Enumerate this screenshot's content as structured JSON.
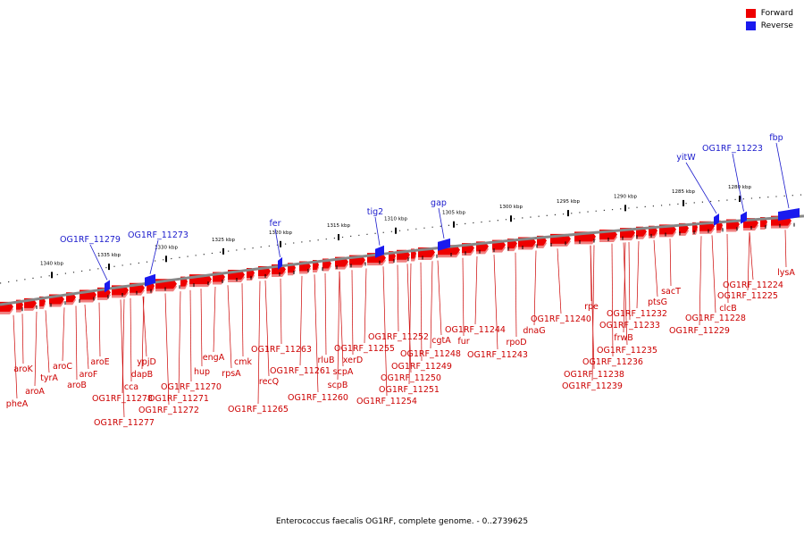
{
  "caption": "Enterococcus faecalis OG1RF, complete genome. - 0..2739625",
  "legend": [
    {
      "label": "Forward",
      "color": "#ee0000"
    },
    {
      "label": "Reverse",
      "color": "#1a1aee"
    }
  ],
  "colors": {
    "forward": "#ee0000",
    "forward_label": "#cc0000",
    "reverse": "#1a1aee",
    "reverse_label": "#1a1acc",
    "backbone": "#888888"
  },
  "scale_ticks": [
    "1340 kbp",
    "1335 kbp",
    "1330 kbp",
    "1325 kbp",
    "1320 kbp",
    "1315 kbp",
    "1310 kbp",
    "1305 kbp",
    "1300 kbp",
    "1295 kbp",
    "1290 kbp",
    "1285 kbp",
    "1280 kbp"
  ],
  "reverse_genes": [
    "OG1RF_11279",
    "OG1RF_11273",
    "fer",
    "tig2",
    "gap",
    "yitW",
    "OG1RF_11223",
    "fbp"
  ],
  "forward_genes": [
    "pheA",
    "aroK",
    "aroA",
    "tyrA",
    "aroB",
    "aroC",
    "aroF",
    "aroE",
    "OG1RF_11278",
    "OG1RF_11277",
    "cca",
    "dapB",
    "ypjD",
    "OG1RF_11270",
    "OG1RF_11271",
    "OG1RF_11272",
    "hup",
    "engA",
    "rpsA",
    "cmk",
    "OG1RF_11265",
    "recQ",
    "OG1RF_11263",
    "OG1RF_11261",
    "OG1RF_11260",
    "rluB",
    "scpB",
    "scpA",
    "xerD",
    "OG1RF_11255",
    "OG1RF_11254",
    "OG1RF_11252",
    "OG1RF_11251",
    "OG1RF_11250",
    "OG1RF_11249",
    "OG1RF_11248",
    "cgtA",
    "fur",
    "OG1RF_11244",
    "OG1RF_11243",
    "rpoD",
    "dnaG",
    "OG1RF_11240",
    "rpe",
    "OG1RF_11239",
    "OG1RF_11238",
    "OG1RF_11236",
    "frwB",
    "OG1RF_11235",
    "OG1RF_11233",
    "OG1RF_11232",
    "ptsG",
    "sacT",
    "OG1RF_11229",
    "OG1RF_11228",
    "clcB",
    "OG1RF_11225",
    "OG1RF_11224",
    "lysA"
  ]
}
